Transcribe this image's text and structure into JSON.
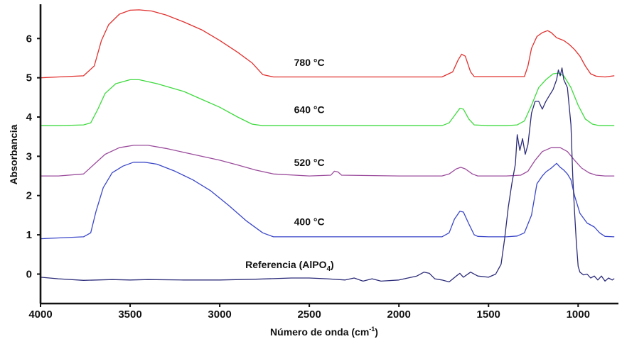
{
  "chart_data": {
    "type": "line",
    "title": "",
    "xlabel": "Número de onda (cm",
    "xlabel_sup": "-1",
    "xlabel_end": ")",
    "ylabel": "Absorbancia",
    "xlim": [
      4000,
      775
    ],
    "ylim": [
      -0.75,
      6.8
    ],
    "x_reversed": true,
    "grid": false,
    "x_ticks": [
      4000,
      3500,
      3000,
      2500,
      2000,
      1500,
      1000
    ],
    "y_ticks": [
      0,
      1,
      2,
      3,
      4,
      5,
      6
    ],
    "annotations": [
      {
        "text": "780 °C",
        "x": 2500,
        "y": 5.3
      },
      {
        "text": "640 °C",
        "x": 2500,
        "y": 4.1
      },
      {
        "text": "520 °C",
        "x": 2500,
        "y": 2.75
      },
      {
        "text": "400 °C",
        "x": 2500,
        "y": 1.25
      },
      {
        "text": "Referencia (AlPO",
        "sub": "4",
        "text_end": ")",
        "x": 2610,
        "y": 0.15
      }
    ],
    "series": [
      {
        "color": "#e0312f",
        "points": [
          [
            4000,
            5.0
          ],
          [
            3900,
            5.02
          ],
          [
            3760,
            5.05
          ],
          [
            3700,
            5.3
          ],
          [
            3660,
            5.95
          ],
          [
            3620,
            6.35
          ],
          [
            3560,
            6.62
          ],
          [
            3500,
            6.72
          ],
          [
            3450,
            6.73
          ],
          [
            3380,
            6.7
          ],
          [
            3300,
            6.6
          ],
          [
            3200,
            6.42
          ],
          [
            3100,
            6.22
          ],
          [
            3000,
            5.95
          ],
          [
            2900,
            5.65
          ],
          [
            2820,
            5.38
          ],
          [
            2760,
            5.08
          ],
          [
            2700,
            5.02
          ],
          [
            2300,
            5.02
          ],
          [
            2000,
            5.02
          ],
          [
            1760,
            5.02
          ],
          [
            1700,
            5.15
          ],
          [
            1670,
            5.45
          ],
          [
            1650,
            5.6
          ],
          [
            1630,
            5.55
          ],
          [
            1600,
            5.15
          ],
          [
            1580,
            5.03
          ],
          [
            1500,
            5.03
          ],
          [
            1300,
            5.03
          ],
          [
            1280,
            5.3
          ],
          [
            1260,
            5.75
          ],
          [
            1230,
            6.05
          ],
          [
            1200,
            6.15
          ],
          [
            1170,
            6.2
          ],
          [
            1150,
            6.15
          ],
          [
            1120,
            6.02
          ],
          [
            1080,
            5.95
          ],
          [
            1050,
            5.85
          ],
          [
            1020,
            5.72
          ],
          [
            990,
            5.55
          ],
          [
            960,
            5.3
          ],
          [
            930,
            5.1
          ],
          [
            900,
            5.04
          ],
          [
            850,
            5.02
          ],
          [
            800,
            5.05
          ]
        ]
      },
      {
        "color": "#3fda3f",
        "points": [
          [
            4000,
            3.78
          ],
          [
            3900,
            3.78
          ],
          [
            3760,
            3.8
          ],
          [
            3720,
            3.85
          ],
          [
            3680,
            4.2
          ],
          [
            3640,
            4.6
          ],
          [
            3580,
            4.85
          ],
          [
            3500,
            4.95
          ],
          [
            3450,
            4.95
          ],
          [
            3350,
            4.85
          ],
          [
            3200,
            4.65
          ],
          [
            3100,
            4.45
          ],
          [
            3000,
            4.25
          ],
          [
            2900,
            4.0
          ],
          [
            2820,
            3.82
          ],
          [
            2760,
            3.78
          ],
          [
            2300,
            3.78
          ],
          [
            2000,
            3.78
          ],
          [
            1760,
            3.78
          ],
          [
            1720,
            3.85
          ],
          [
            1680,
            4.1
          ],
          [
            1660,
            4.22
          ],
          [
            1640,
            4.2
          ],
          [
            1610,
            3.95
          ],
          [
            1580,
            3.8
          ],
          [
            1500,
            3.78
          ],
          [
            1400,
            3.78
          ],
          [
            1340,
            3.8
          ],
          [
            1300,
            3.9
          ],
          [
            1260,
            4.3
          ],
          [
            1220,
            4.75
          ],
          [
            1180,
            4.95
          ],
          [
            1140,
            5.1
          ],
          [
            1110,
            5.12
          ],
          [
            1080,
            5.05
          ],
          [
            1040,
            4.75
          ],
          [
            1000,
            4.3
          ],
          [
            960,
            3.95
          ],
          [
            920,
            3.82
          ],
          [
            880,
            3.78
          ],
          [
            800,
            3.78
          ]
        ]
      },
      {
        "color": "#9b4c9c",
        "points": [
          [
            4000,
            2.5
          ],
          [
            3900,
            2.5
          ],
          [
            3760,
            2.55
          ],
          [
            3700,
            2.8
          ],
          [
            3640,
            3.05
          ],
          [
            3560,
            3.22
          ],
          [
            3480,
            3.28
          ],
          [
            3400,
            3.28
          ],
          [
            3300,
            3.2
          ],
          [
            3150,
            3.05
          ],
          [
            3000,
            2.9
          ],
          [
            2900,
            2.78
          ],
          [
            2800,
            2.65
          ],
          [
            2700,
            2.55
          ],
          [
            2500,
            2.5
          ],
          [
            2380,
            2.52
          ],
          [
            2360,
            2.62
          ],
          [
            2340,
            2.6
          ],
          [
            2320,
            2.52
          ],
          [
            2000,
            2.5
          ],
          [
            1760,
            2.5
          ],
          [
            1720,
            2.55
          ],
          [
            1680,
            2.68
          ],
          [
            1655,
            2.72
          ],
          [
            1630,
            2.68
          ],
          [
            1590,
            2.55
          ],
          [
            1560,
            2.5
          ],
          [
            1400,
            2.5
          ],
          [
            1320,
            2.52
          ],
          [
            1280,
            2.62
          ],
          [
            1240,
            2.9
          ],
          [
            1200,
            3.12
          ],
          [
            1150,
            3.22
          ],
          [
            1100,
            3.22
          ],
          [
            1060,
            3.12
          ],
          [
            1020,
            2.9
          ],
          [
            980,
            2.7
          ],
          [
            940,
            2.58
          ],
          [
            900,
            2.52
          ],
          [
            850,
            2.5
          ],
          [
            800,
            2.5
          ]
        ]
      },
      {
        "color": "#3b47c8",
        "points": [
          [
            4000,
            0.9
          ],
          [
            3900,
            0.92
          ],
          [
            3760,
            0.95
          ],
          [
            3720,
            1.05
          ],
          [
            3690,
            1.6
          ],
          [
            3650,
            2.2
          ],
          [
            3600,
            2.58
          ],
          [
            3540,
            2.75
          ],
          [
            3480,
            2.85
          ],
          [
            3420,
            2.85
          ],
          [
            3350,
            2.8
          ],
          [
            3250,
            2.62
          ],
          [
            3150,
            2.4
          ],
          [
            3050,
            2.12
          ],
          [
            2950,
            1.75
          ],
          [
            2850,
            1.35
          ],
          [
            2760,
            1.05
          ],
          [
            2700,
            0.95
          ],
          [
            2300,
            0.95
          ],
          [
            2000,
            0.95
          ],
          [
            1760,
            0.95
          ],
          [
            1720,
            1.05
          ],
          [
            1690,
            1.4
          ],
          [
            1660,
            1.6
          ],
          [
            1640,
            1.58
          ],
          [
            1610,
            1.28
          ],
          [
            1580,
            1.0
          ],
          [
            1560,
            0.96
          ],
          [
            1500,
            0.95
          ],
          [
            1400,
            0.95
          ],
          [
            1340,
            0.97
          ],
          [
            1300,
            1.05
          ],
          [
            1260,
            1.5
          ],
          [
            1230,
            2.3
          ],
          [
            1200,
            2.5
          ],
          [
            1180,
            2.6
          ],
          [
            1150,
            2.7
          ],
          [
            1120,
            2.82
          ],
          [
            1100,
            2.72
          ],
          [
            1080,
            2.65
          ],
          [
            1060,
            2.55
          ],
          [
            1040,
            2.4
          ],
          [
            1020,
            2.0
          ],
          [
            990,
            1.55
          ],
          [
            950,
            1.3
          ],
          [
            910,
            1.2
          ],
          [
            880,
            1.05
          ],
          [
            850,
            0.96
          ],
          [
            800,
            0.95
          ]
        ]
      },
      {
        "color": "#2c2c7a",
        "points": [
          [
            4000,
            -0.08
          ],
          [
            3900,
            -0.12
          ],
          [
            3760,
            -0.16
          ],
          [
            3600,
            -0.14
          ],
          [
            3500,
            -0.15
          ],
          [
            3400,
            -0.14
          ],
          [
            3200,
            -0.15
          ],
          [
            3000,
            -0.15
          ],
          [
            2800,
            -0.13
          ],
          [
            2600,
            -0.1
          ],
          [
            2500,
            -0.1
          ],
          [
            2400,
            -0.12
          ],
          [
            2300,
            -0.15
          ],
          [
            2250,
            -0.1
          ],
          [
            2200,
            -0.18
          ],
          [
            2150,
            -0.12
          ],
          [
            2100,
            -0.18
          ],
          [
            2000,
            -0.15
          ],
          [
            1900,
            -0.05
          ],
          [
            1860,
            0.05
          ],
          [
            1830,
            0.02
          ],
          [
            1800,
            -0.12
          ],
          [
            1760,
            -0.15
          ],
          [
            1720,
            -0.2
          ],
          [
            1680,
            -0.05
          ],
          [
            1660,
            0.02
          ],
          [
            1640,
            -0.08
          ],
          [
            1600,
            0.05
          ],
          [
            1560,
            -0.05
          ],
          [
            1500,
            -0.08
          ],
          [
            1460,
            0.0
          ],
          [
            1430,
            0.25
          ],
          [
            1410,
            0.9
          ],
          [
            1390,
            1.7
          ],
          [
            1370,
            2.3
          ],
          [
            1350,
            2.8
          ],
          [
            1340,
            3.55
          ],
          [
            1325,
            3.15
          ],
          [
            1310,
            3.45
          ],
          [
            1295,
            3.05
          ],
          [
            1280,
            3.3
          ],
          [
            1260,
            4.1
          ],
          [
            1240,
            4.4
          ],
          [
            1220,
            4.4
          ],
          [
            1200,
            4.2
          ],
          [
            1180,
            4.4
          ],
          [
            1160,
            4.55
          ],
          [
            1140,
            4.7
          ],
          [
            1120,
            4.95
          ],
          [
            1110,
            5.2
          ],
          [
            1100,
            5.05
          ],
          [
            1090,
            5.25
          ],
          [
            1080,
            4.95
          ],
          [
            1060,
            4.75
          ],
          [
            1040,
            3.8
          ],
          [
            1030,
            2.5
          ],
          [
            1020,
            1.6
          ],
          [
            1010,
            0.8
          ],
          [
            1000,
            0.2
          ],
          [
            990,
            0.05
          ],
          [
            970,
            -0.02
          ],
          [
            950,
            0.0
          ],
          [
            930,
            -0.1
          ],
          [
            910,
            -0.05
          ],
          [
            890,
            -0.15
          ],
          [
            870,
            -0.05
          ],
          [
            850,
            -0.18
          ],
          [
            830,
            -0.1
          ],
          [
            810,
            -0.15
          ],
          [
            800,
            -0.12
          ]
        ]
      }
    ]
  }
}
